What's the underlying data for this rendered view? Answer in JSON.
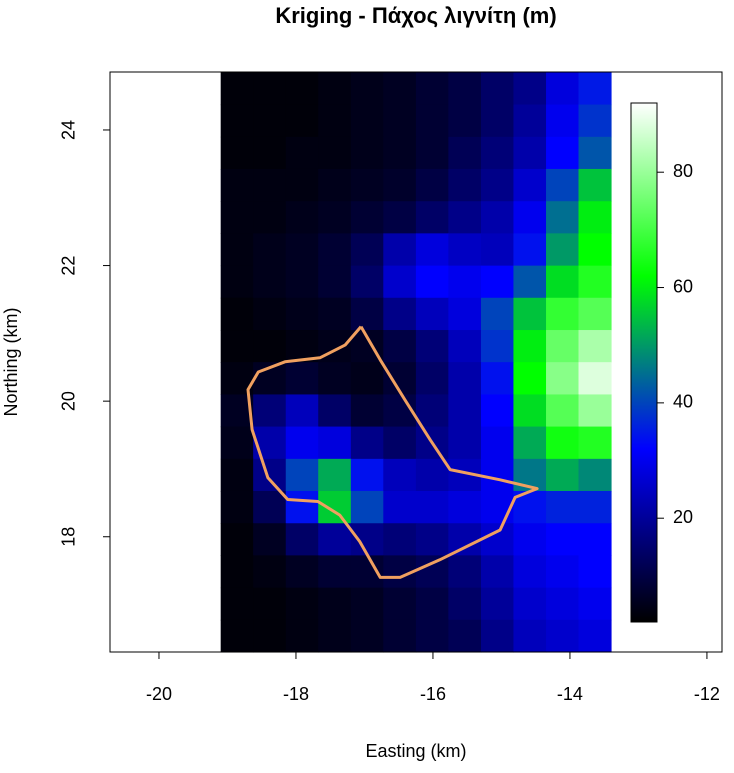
{
  "chart_data": {
    "type": "heatmap",
    "title": "Kriging - Πάχος λιγνίτη (m)",
    "xlabel": "Easting (km)",
    "ylabel": "Northing (km)",
    "xlim": [
      -20.715,
      -11.78
    ],
    "ylim": [
      16.3,
      24.855
    ],
    "xticks": [
      -20,
      -18,
      -16,
      -14,
      -12
    ],
    "yticks": [
      18,
      20,
      22,
      24
    ],
    "x": [
      -18.862,
      -18.388,
      -17.912,
      -17.438,
      -16.962,
      -16.488,
      -16.012,
      -15.538,
      -15.062,
      -14.588,
      -14.112,
      -13.638
    ],
    "y": [
      24.612,
      24.138,
      23.662,
      23.188,
      22.712,
      22.238,
      21.762,
      21.288,
      20.812,
      20.338,
      19.862,
      19.388,
      18.912,
      18.438,
      17.962,
      17.488,
      17.012,
      16.538
    ],
    "z": [
      [
        3,
        3,
        3,
        4,
        5,
        6,
        8,
        10,
        14,
        18,
        28,
        35
      ],
      [
        3,
        3,
        3,
        4,
        5,
        6,
        8,
        10,
        14,
        20,
        30,
        38
      ],
      [
        3,
        3,
        4,
        4,
        5,
        6,
        8,
        12,
        16,
        22,
        32,
        42
      ],
      [
        4,
        4,
        4,
        5,
        6,
        7,
        10,
        14,
        18,
        26,
        40,
        55
      ],
      [
        4,
        4,
        5,
        6,
        8,
        10,
        14,
        18,
        22,
        30,
        45,
        60
      ],
      [
        4,
        5,
        6,
        8,
        12,
        22,
        28,
        25,
        24,
        34,
        50,
        62
      ],
      [
        4,
        5,
        6,
        8,
        14,
        26,
        32,
        30,
        32,
        42,
        58,
        66
      ],
      [
        3,
        4,
        5,
        6,
        10,
        18,
        24,
        28,
        40,
        55,
        68,
        72
      ],
      [
        3,
        3,
        4,
        5,
        6,
        10,
        16,
        24,
        38,
        60,
        74,
        82
      ],
      [
        4,
        6,
        8,
        6,
        5,
        8,
        14,
        22,
        34,
        62,
        78,
        88
      ],
      [
        6,
        16,
        24,
        14,
        8,
        10,
        16,
        22,
        32,
        58,
        72,
        80
      ],
      [
        5,
        22,
        30,
        28,
        18,
        14,
        18,
        22,
        30,
        52,
        64,
        66
      ],
      [
        4,
        18,
        40,
        52,
        34,
        24,
        22,
        24,
        30,
        46,
        52,
        48
      ],
      [
        4,
        12,
        34,
        56,
        40,
        26,
        26,
        28,
        30,
        34,
        36,
        36
      ],
      [
        3,
        6,
        14,
        20,
        18,
        16,
        18,
        22,
        26,
        30,
        32,
        32
      ],
      [
        3,
        4,
        6,
        8,
        8,
        10,
        12,
        16,
        22,
        28,
        30,
        32
      ],
      [
        3,
        3,
        4,
        5,
        6,
        8,
        10,
        14,
        20,
        26,
        28,
        30
      ],
      [
        3,
        3,
        4,
        5,
        6,
        8,
        10,
        12,
        18,
        24,
        26,
        28
      ]
    ],
    "zlim": [
      2,
      92
    ],
    "zticks": [
      20,
      40,
      60,
      80
    ],
    "colorscale": [
      "#000000",
      "#0000ff",
      "#00ff00",
      "#ffffff"
    ],
    "outline": {
      "color": "#f0a060",
      "x": [
        -17.05,
        -17.28,
        -17.65,
        -18.16,
        -18.55,
        -18.7,
        -18.64,
        -18.41,
        -18.12,
        -17.68,
        -17.36,
        -17.07,
        -16.77,
        -16.48,
        -15.9,
        -15.02,
        -14.8,
        -14.48,
        -15.02,
        -15.75,
        -16.04,
        -16.41,
        -16.77,
        -17.05
      ],
      "y": [
        21.1,
        20.83,
        20.64,
        20.58,
        20.43,
        20.17,
        19.58,
        18.87,
        18.55,
        18.52,
        18.32,
        17.93,
        17.4,
        17.4,
        17.66,
        18.1,
        18.58,
        18.71,
        18.84,
        18.99,
        19.43,
        20.02,
        20.61,
        21.1
      ]
    }
  }
}
